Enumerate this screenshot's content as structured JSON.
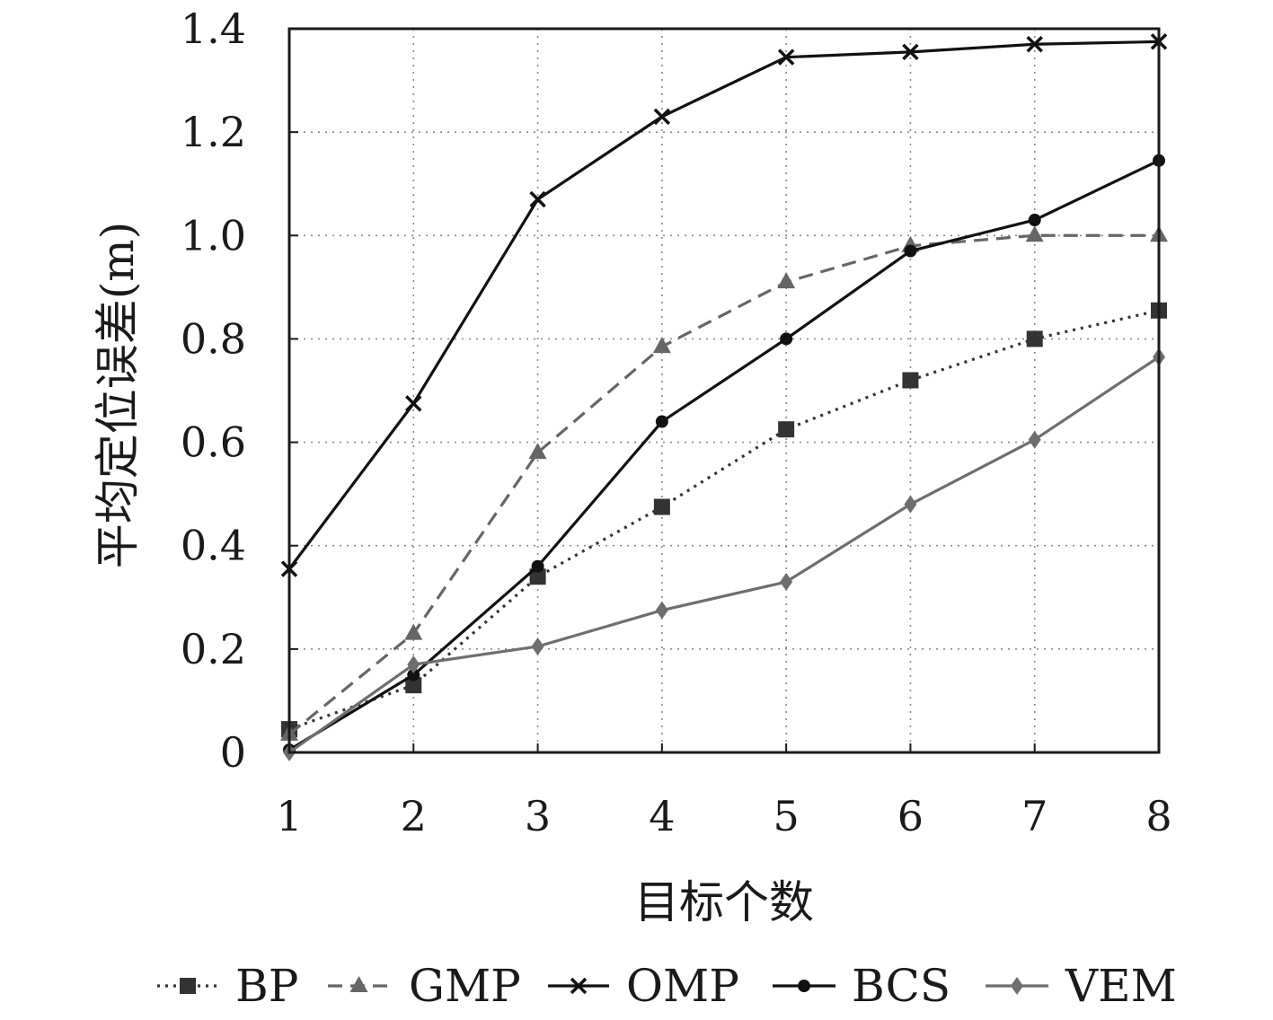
{
  "chart_data": {
    "type": "line",
    "title": "",
    "xlabel": "目标个数",
    "ylabel": "平均定位误差(m)",
    "x": [
      1,
      2,
      3,
      4,
      5,
      6,
      7,
      8
    ],
    "xlim": [
      1,
      8
    ],
    "ylim": [
      0,
      1.4
    ],
    "xticks": [
      "1",
      "2",
      "3",
      "4",
      "5",
      "6",
      "7",
      "8"
    ],
    "yticks": [
      "0",
      "0.2",
      "0.4",
      "0.6",
      "0.8",
      "1.0",
      "1.2",
      "1.4"
    ],
    "grid": true,
    "legend_position": "bottom",
    "series": [
      {
        "name": "BP",
        "values": [
          0.045,
          0.13,
          0.34,
          0.475,
          0.625,
          0.72,
          0.8,
          0.855
        ],
        "color": "#333333",
        "line_style": "dotted",
        "marker": "square"
      },
      {
        "name": "GMP",
        "values": [
          0.035,
          0.23,
          0.58,
          0.785,
          0.91,
          0.98,
          1.0,
          1.0
        ],
        "color": "#666666",
        "line_style": "dashed",
        "marker": "triangle"
      },
      {
        "name": "OMP",
        "values": [
          0.355,
          0.675,
          1.07,
          1.23,
          1.345,
          1.355,
          1.37,
          1.375
        ],
        "color": "#111111",
        "line_style": "solid",
        "marker": "cross"
      },
      {
        "name": "BCS",
        "values": [
          0.005,
          0.15,
          0.36,
          0.64,
          0.8,
          0.97,
          1.03,
          1.145
        ],
        "color": "#111111",
        "line_style": "solid",
        "marker": "circle"
      },
      {
        "name": "VEM",
        "values": [
          0.0,
          0.17,
          0.205,
          0.275,
          0.33,
          0.48,
          0.605,
          0.765
        ],
        "color": "#6e6e6e",
        "line_style": "solid",
        "marker": "diamond"
      }
    ]
  }
}
